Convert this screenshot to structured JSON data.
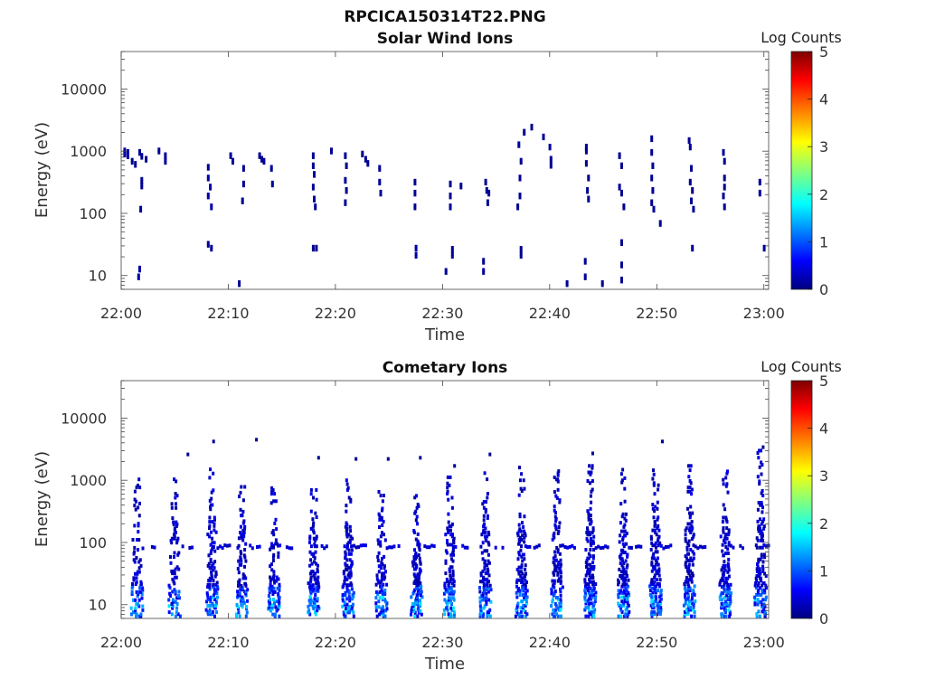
{
  "figure_title": "RPCICA150314T22.PNG",
  "chart_data": [
    {
      "type": "heatmap",
      "title": "Solar Wind Ions",
      "xlabel": "Time",
      "ylabel": "Energy (eV)",
      "x_scale": "time",
      "y_scale": "log",
      "x_range": [
        "22:00",
        "23:00"
      ],
      "ylim": [
        6,
        40000
      ],
      "x_ticks": [
        "22:00",
        "22:10",
        "22:20",
        "22:30",
        "22:40",
        "22:50",
        "23:00"
      ],
      "y_ticks": [
        "10",
        "100",
        "1000",
        "10000"
      ],
      "colorbar": {
        "label": "Log Counts",
        "ticks": [
          "0",
          "1",
          "2",
          "3",
          "4",
          "5"
        ],
        "range": [
          0,
          5
        ],
        "colormap": "jet"
      },
      "points": [
        [
          0.2,
          950,
          0.2
        ],
        [
          0.2,
          850,
          0.2
        ],
        [
          0.5,
          900,
          0.2
        ],
        [
          0.5,
          800,
          0.2
        ],
        [
          0.9,
          650,
          0.1
        ],
        [
          1.2,
          580,
          0.1
        ],
        [
          1.6,
          900,
          0.1
        ],
        [
          1.8,
          780,
          0.1
        ],
        [
          1.8,
          320,
          0.1
        ],
        [
          1.8,
          260,
          0.1
        ],
        [
          1.7,
          110,
          0.1
        ],
        [
          1.6,
          12,
          0.2
        ],
        [
          1.5,
          9,
          0.2
        ],
        [
          2.2,
          700,
          0.1
        ],
        [
          3.4,
          950,
          0.1
        ],
        [
          4.0,
          800,
          0.1
        ],
        [
          4.0,
          650,
          0.1
        ],
        [
          8.0,
          520,
          0.1
        ],
        [
          8.0,
          350,
          0.2
        ],
        [
          8.2,
          250,
          0.2
        ],
        [
          8.0,
          180,
          0.2
        ],
        [
          8.3,
          120,
          0.2
        ],
        [
          8.0,
          30,
          0.1
        ],
        [
          8.3,
          26,
          0.1
        ],
        [
          10.1,
          800,
          0.1
        ],
        [
          10.3,
          650,
          0.1
        ],
        [
          11.3,
          500,
          0.1
        ],
        [
          11.3,
          280,
          0.1
        ],
        [
          11.2,
          150,
          0.1
        ],
        [
          10.9,
          7,
          0.1
        ],
        [
          12.8,
          800,
          0.1
        ],
        [
          13.0,
          700,
          0.1
        ],
        [
          13.2,
          650,
          0.1
        ],
        [
          13.9,
          500,
          0.1
        ],
        [
          14.0,
          280,
          0.1
        ],
        [
          17.8,
          800,
          0.1
        ],
        [
          17.8,
          550,
          0.1
        ],
        [
          17.9,
          400,
          0.1
        ],
        [
          17.8,
          250,
          0.1
        ],
        [
          17.9,
          160,
          0.1
        ],
        [
          18.0,
          120,
          0.1
        ],
        [
          17.8,
          26,
          0.1
        ],
        [
          18.1,
          26,
          0.1
        ],
        [
          19.5,
          950,
          0.1
        ],
        [
          20.8,
          800,
          0.1
        ],
        [
          20.9,
          550,
          0.1
        ],
        [
          20.8,
          320,
          0.1
        ],
        [
          20.9,
          220,
          0.1
        ],
        [
          20.8,
          140,
          0.1
        ],
        [
          22.4,
          850,
          0.1
        ],
        [
          22.7,
          700,
          0.1
        ],
        [
          22.9,
          600,
          0.1
        ],
        [
          24.0,
          500,
          0.1
        ],
        [
          24.0,
          300,
          0.1
        ],
        [
          24.1,
          200,
          0.1
        ],
        [
          27.3,
          300,
          0.1
        ],
        [
          27.3,
          200,
          0.1
        ],
        [
          27.3,
          120,
          0.1
        ],
        [
          27.4,
          26,
          0.2
        ],
        [
          27.4,
          20,
          0.2
        ],
        [
          30.2,
          11,
          0.1
        ],
        [
          30.6,
          280,
          0.1
        ],
        [
          30.6,
          180,
          0.1
        ],
        [
          30.6,
          120,
          0.1
        ],
        [
          30.8,
          25,
          0.1
        ],
        [
          30.8,
          20,
          0.1
        ],
        [
          31.6,
          260,
          0.1
        ],
        [
          33.7,
          16,
          0.1
        ],
        [
          33.7,
          11,
          0.1
        ],
        [
          33.9,
          300,
          0.1
        ],
        [
          34.0,
          220,
          0.1
        ],
        [
          34.2,
          200,
          0.1
        ],
        [
          34.1,
          140,
          0.1
        ],
        [
          37.0,
          1200,
          0.1
        ],
        [
          37.2,
          650,
          0.1
        ],
        [
          37.1,
          350,
          0.1
        ],
        [
          37.1,
          180,
          0.1
        ],
        [
          36.9,
          120,
          0.1
        ],
        [
          37.2,
          25,
          0.1
        ],
        [
          37.2,
          20,
          0.1
        ],
        [
          37.5,
          1900,
          0.1
        ],
        [
          38.2,
          2300,
          0.1
        ],
        [
          39.3,
          1600,
          0.1
        ],
        [
          39.9,
          1100,
          0.1
        ],
        [
          40.0,
          700,
          0.1
        ],
        [
          40.0,
          560,
          0.1
        ],
        [
          41.5,
          7,
          0.1
        ],
        [
          43.3,
          1100,
          0.1
        ],
        [
          43.3,
          950,
          0.1
        ],
        [
          43.3,
          600,
          0.1
        ],
        [
          43.5,
          350,
          0.1
        ],
        [
          43.4,
          220,
          0.1
        ],
        [
          43.5,
          160,
          0.1
        ],
        [
          43.2,
          16,
          0.1
        ],
        [
          43.2,
          9,
          0.1
        ],
        [
          44.8,
          7,
          0.1
        ],
        [
          46.4,
          800,
          0.1
        ],
        [
          46.6,
          550,
          0.1
        ],
        [
          46.4,
          250,
          0.1
        ],
        [
          46.6,
          200,
          0.1
        ],
        [
          46.8,
          120,
          0.1
        ],
        [
          46.6,
          32,
          0.1
        ],
        [
          46.6,
          14,
          0.1
        ],
        [
          46.6,
          8,
          0.1
        ],
        [
          49.4,
          1500,
          0.1
        ],
        [
          49.4,
          900,
          0.1
        ],
        [
          49.5,
          550,
          0.1
        ],
        [
          49.4,
          350,
          0.1
        ],
        [
          49.5,
          220,
          0.1
        ],
        [
          49.4,
          140,
          0.1
        ],
        [
          49.6,
          110,
          0.1
        ],
        [
          50.2,
          65,
          0.1
        ],
        [
          52.9,
          1400,
          0.1
        ],
        [
          53.0,
          1100,
          0.1
        ],
        [
          53.1,
          500,
          0.1
        ],
        [
          53.0,
          300,
          0.1
        ],
        [
          53.2,
          220,
          0.1
        ],
        [
          53.1,
          150,
          0.1
        ],
        [
          53.3,
          110,
          0.1
        ],
        [
          53.2,
          26,
          0.1
        ],
        [
          56.1,
          900,
          0.1
        ],
        [
          56.2,
          650,
          0.1
        ],
        [
          56.2,
          350,
          0.1
        ],
        [
          56.2,
          250,
          0.1
        ],
        [
          56.1,
          180,
          0.1
        ],
        [
          56.2,
          120,
          0.1
        ],
        [
          59.5,
          300,
          0.1
        ],
        [
          59.5,
          200,
          0.1
        ],
        [
          59.9,
          26,
          0.1
        ]
      ]
    },
    {
      "type": "heatmap",
      "title": "Cometary Ions",
      "xlabel": "Time",
      "ylabel": "Energy (eV)",
      "x_scale": "time",
      "y_scale": "log",
      "x_range": [
        "22:00",
        "23:00"
      ],
      "ylim": [
        6,
        40000
      ],
      "x_ticks": [
        "22:00",
        "22:10",
        "22:20",
        "22:30",
        "22:40",
        "22:50",
        "23:00"
      ],
      "y_ticks": [
        "10",
        "100",
        "1000",
        "10000"
      ],
      "colorbar": {
        "label": "Log Counts",
        "ticks": [
          "0",
          "1",
          "2",
          "3",
          "4",
          "5"
        ],
        "range": [
          0,
          5
        ],
        "colormap": "jet"
      },
      "columns": [
        {
          "t": 1.5,
          "top": 1200,
          "density": 0.55
        },
        {
          "t": 5.0,
          "top": 1300,
          "density": 0.5
        },
        {
          "t": 8.5,
          "top": 1500,
          "density": 0.75
        },
        {
          "t": 11.3,
          "top": 900,
          "density": 0.6
        },
        {
          "t": 14.3,
          "top": 800,
          "density": 0.6
        },
        {
          "t": 18.0,
          "top": 1000,
          "density": 0.7
        },
        {
          "t": 21.2,
          "top": 1000,
          "density": 0.7
        },
        {
          "t": 24.3,
          "top": 800,
          "density": 0.65
        },
        {
          "t": 27.6,
          "top": 600,
          "density": 0.7
        },
        {
          "t": 30.7,
          "top": 1300,
          "density": 0.7
        },
        {
          "t": 34.0,
          "top": 1300,
          "density": 0.7
        },
        {
          "t": 37.4,
          "top": 1600,
          "density": 0.8
        },
        {
          "t": 40.7,
          "top": 1400,
          "density": 0.75
        },
        {
          "t": 43.8,
          "top": 1700,
          "density": 0.85
        },
        {
          "t": 46.9,
          "top": 1600,
          "density": 0.85
        },
        {
          "t": 49.9,
          "top": 1700,
          "density": 0.85
        },
        {
          "t": 53.1,
          "top": 1700,
          "density": 0.85
        },
        {
          "t": 56.4,
          "top": 1500,
          "density": 0.85
        },
        {
          "t": 59.7,
          "top": 3000,
          "density": 0.8
        }
      ],
      "sparse_points": [
        [
          6.1,
          2600,
          0.1
        ],
        [
          8.5,
          4200,
          0.1
        ],
        [
          12.5,
          4500,
          0.1
        ],
        [
          18.3,
          2300,
          0.1
        ],
        [
          21.8,
          2200,
          0.1
        ],
        [
          24.8,
          2200,
          0.1
        ],
        [
          27.8,
          2300,
          0.1
        ],
        [
          31.0,
          1700,
          0.1
        ],
        [
          34.3,
          2600,
          0.1
        ],
        [
          43.9,
          2700,
          0.1
        ],
        [
          50.4,
          4200,
          0.1
        ],
        [
          59.8,
          3400,
          0.1
        ]
      ]
    }
  ]
}
